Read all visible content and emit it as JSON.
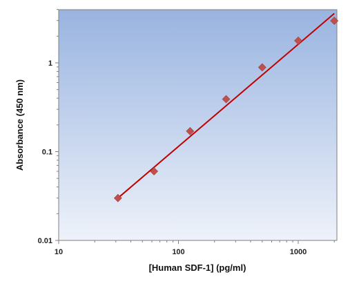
{
  "chart_data": {
    "type": "scatter",
    "title": "",
    "xlabel": "[Human SDF-1] (pg/ml)",
    "ylabel": "Absorbance (450 nm)",
    "xscale": "log",
    "yscale": "log",
    "xlim": [
      10,
      2000
    ],
    "ylim": [
      0.01,
      4
    ],
    "x_ticks": [
      10,
      100,
      1000
    ],
    "x_tick_labels": [
      "10",
      "100",
      "1000"
    ],
    "y_ticks": [
      0.01,
      0.1,
      1
    ],
    "y_tick_labels": [
      "0.01",
      "0.1",
      "1"
    ],
    "grid": false,
    "legend": "none",
    "series": [
      {
        "kind": "points",
        "marker": "diamond",
        "color": "#c0504d",
        "x": [
          31.25,
          62.5,
          125,
          250,
          500,
          1000,
          2000
        ],
        "y": [
          0.03,
          0.06,
          0.17,
          0.39,
          0.89,
          1.78,
          2.98
        ]
      },
      {
        "kind": "fit-line",
        "color": "#c00000",
        "x": [
          31.25,
          2000
        ],
        "y": [
          0.03,
          3.6
        ]
      }
    ],
    "plot_background": [
      "#99b4e0",
      "#eef2fa"
    ]
  }
}
